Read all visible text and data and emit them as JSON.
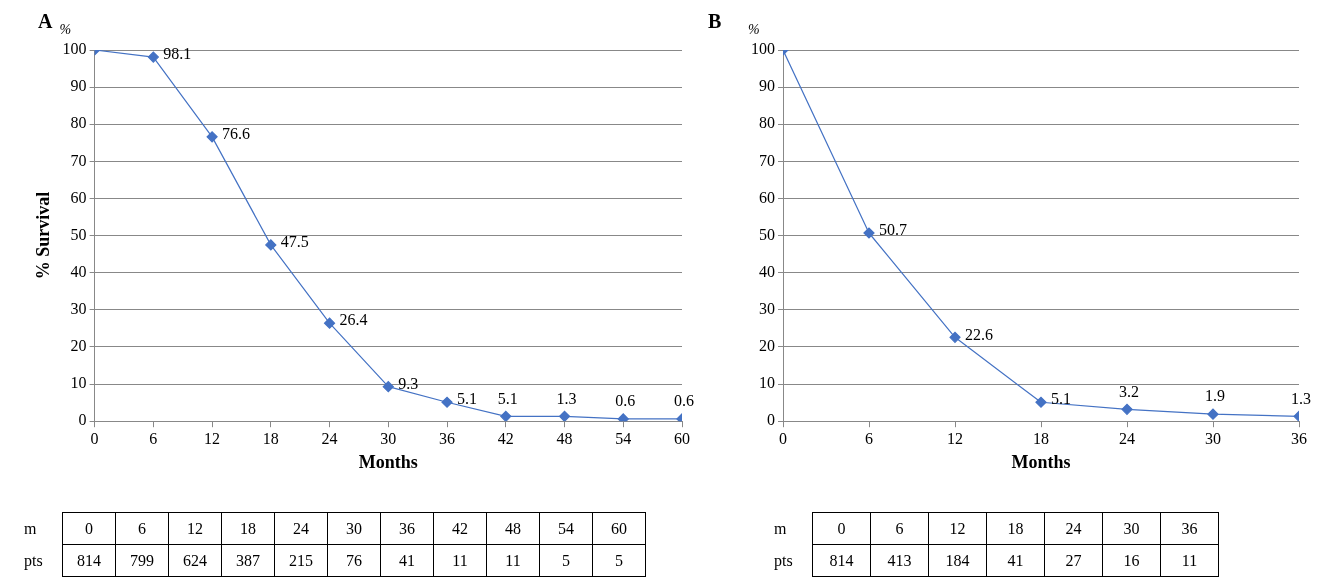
{
  "chart_data": [
    {
      "type": "line",
      "title": "A",
      "xlabel": "Months",
      "ylabel": "% Survival",
      "x": [
        0,
        6,
        12,
        18,
        24,
        30,
        36,
        42,
        48,
        54,
        60
      ],
      "annotations": [
        "%",
        {
          "text": "5.1",
          "x": 42,
          "y": 1.3
        },
        "m",
        "0",
        "6",
        "12",
        "18",
        "24",
        "30",
        "36",
        "42",
        "48",
        "54",
        "60",
        "pts",
        "814",
        "799",
        "624",
        "387",
        "215",
        "76",
        "41",
        "11",
        "11",
        "5",
        "5"
      ],
      "series": [
        {
          "color": "#4472c4",
          "values": [
            100,
            98.1,
            76.6,
            47.5,
            26.4,
            9.3,
            5.1,
            1.3,
            1.3,
            0.6,
            0.6
          ],
          "value_labels": [
            null,
            "98.1",
            "76.6",
            "47.5",
            "26.4",
            "9.3",
            "5.1",
            null,
            "1.3",
            "0.6",
            "0.6"
          ]
        }
      ],
      "xlim": [
        0,
        60
      ],
      "xticks": [
        0,
        6,
        12,
        18,
        24,
        30,
        36,
        42,
        48,
        54,
        60
      ],
      "ylim": [
        0,
        100
      ],
      "yticks": [
        0,
        10,
        20,
        30,
        40,
        50,
        60,
        70,
        80,
        90,
        100
      ],
      "grid": "y",
      "legend": false,
      "marker": "diamond",
      "line_style": "solid"
    },
    {
      "type": "line",
      "title": "B",
      "xlabel": "Months",
      "x": [
        0,
        6,
        12,
        18,
        24,
        30,
        36
      ],
      "annotations": [
        "%",
        "m",
        "0",
        "6",
        "12",
        "18",
        "24",
        "30",
        "36",
        "pts",
        "814",
        "413",
        "184",
        "41",
        "27",
        "16",
        "11"
      ],
      "series": [
        {
          "color": "#4472c4",
          "values": [
            100,
            50.7,
            22.6,
            5.1,
            3.2,
            1.9,
            1.3
          ],
          "value_labels": [
            null,
            "50.7",
            "22.6",
            "5.1",
            "3.2",
            "1.9",
            "1.3"
          ]
        }
      ],
      "xlim": [
        0,
        36
      ],
      "xticks": [
        0,
        6,
        12,
        18,
        24,
        30,
        36
      ],
      "ylim": [
        0,
        100
      ],
      "yticks": [
        0,
        10,
        20,
        30,
        40,
        50,
        60,
        70,
        80,
        90,
        100
      ],
      "grid": "y",
      "legend": false,
      "marker": "diamond",
      "line_style": "solid"
    }
  ]
}
